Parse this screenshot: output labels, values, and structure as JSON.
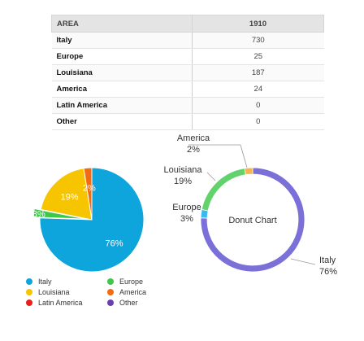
{
  "table": {
    "header_area": "AREA",
    "header_year": "1910",
    "rows": [
      {
        "area": "Italy",
        "value": "730"
      },
      {
        "area": "Europe",
        "value": "25"
      },
      {
        "area": "Louisiana",
        "value": "187"
      },
      {
        "area": "America",
        "value": "24"
      },
      {
        "area": "Latin America",
        "value": "0"
      },
      {
        "area": "Other",
        "value": "0"
      }
    ]
  },
  "chart_data": [
    {
      "type": "pie",
      "categories": [
        "Italy",
        "Europe",
        "Louisiana",
        "America",
        "Latin America",
        "Other"
      ],
      "values": [
        730,
        25,
        187,
        24,
        0,
        0
      ],
      "slice_labels": [
        "76%",
        "3%",
        "19%",
        "2%",
        "",
        ""
      ],
      "colors": [
        "#0ea5dc",
        "#3ec84a",
        "#f7c400",
        "#f36a10",
        "#e8201b",
        "#6b3fb3"
      ],
      "exploded": [
        "Europe"
      ],
      "legend_placement": "bottom"
    },
    {
      "type": "pie",
      "variant": "donut",
      "center_label": "Donut Chart",
      "categories": [
        "Italy",
        "Europe",
        "Louisiana",
        "America"
      ],
      "values": [
        730,
        25,
        187,
        24
      ],
      "callouts": [
        {
          "name": "Italy",
          "pct": "76%"
        },
        {
          "name": "Europe",
          "pct": "3%"
        },
        {
          "name": "Louisiana",
          "pct": "19%"
        },
        {
          "name": "America",
          "pct": "2%"
        }
      ],
      "colors": [
        "#7b6fd8",
        "#3ab9f0",
        "#62d26c",
        "#f6b44a"
      ]
    }
  ],
  "legend": [
    {
      "label": "Italy",
      "color": "#0ea5dc"
    },
    {
      "label": "Europe",
      "color": "#3ec84a"
    },
    {
      "label": "Louisiana",
      "color": "#f7c400"
    },
    {
      "label": "America",
      "color": "#f36a10"
    },
    {
      "label": "Latin America",
      "color": "#e8201b"
    },
    {
      "label": "Other",
      "color": "#6b3fb3"
    }
  ]
}
